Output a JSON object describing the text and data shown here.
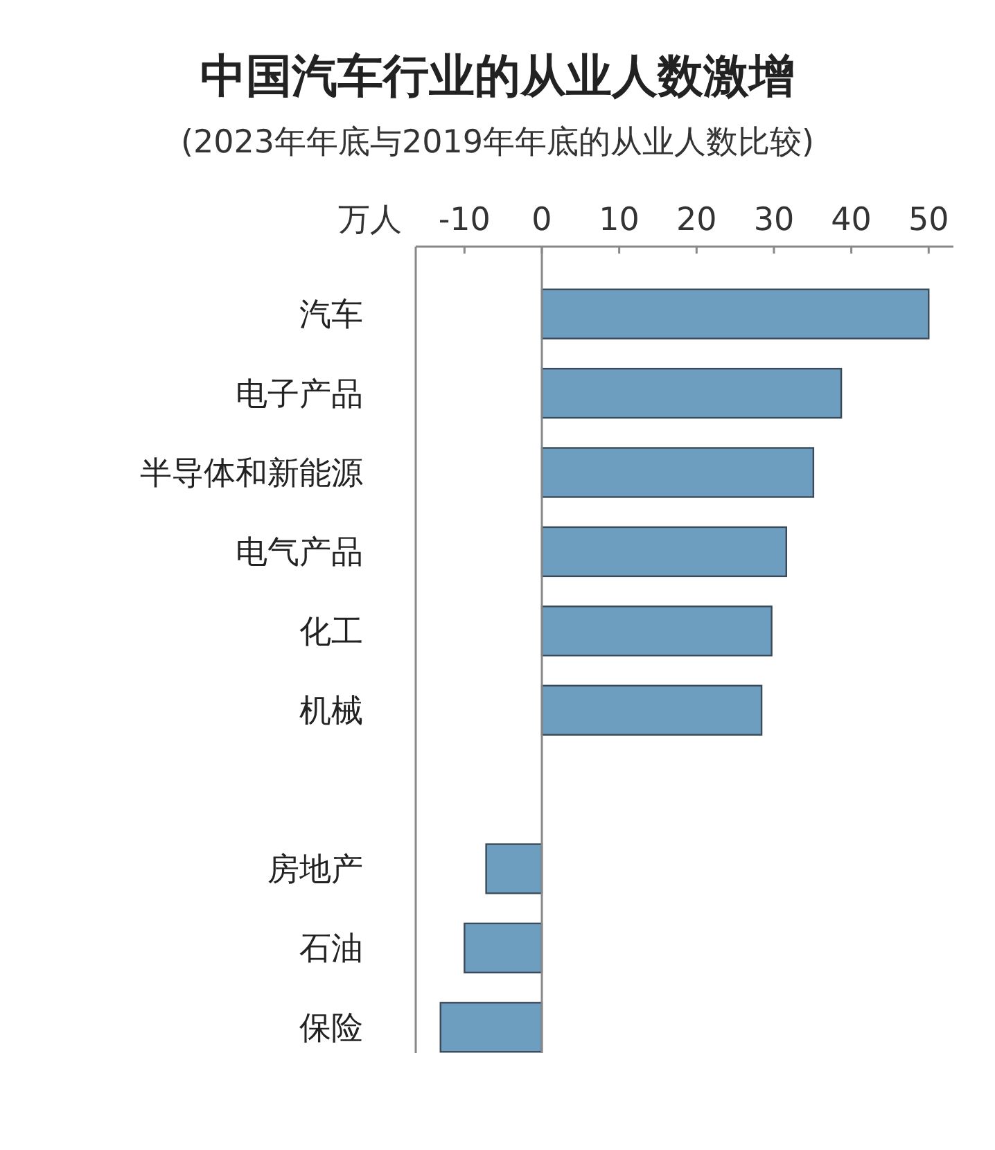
{
  "chart_data": {
    "type": "bar",
    "orientation": "horizontal",
    "title": "中国汽车行业的从业人数激增",
    "subtitle": "(2023年年底与2019年年底的从业人数比较)",
    "xlabel": "万人",
    "categories": [
      "汽车",
      "电子产品",
      "半导体和新能源",
      "电气产品",
      "化工",
      "机械",
      null,
      "房地产",
      "石油",
      "保险"
    ],
    "values": [
      50,
      38.7,
      35.1,
      31.6,
      29.7,
      28.4,
      null,
      -7.2,
      -10,
      -13.1
    ],
    "color": "#6d9ec0",
    "xlim": [
      -16.3,
      53.2
    ],
    "xticks": [
      -10,
      0,
      10,
      20,
      30,
      40,
      50
    ],
    "ref_lines": [
      {
        "axis": "x",
        "value": 0,
        "color": "#888888"
      }
    ]
  }
}
